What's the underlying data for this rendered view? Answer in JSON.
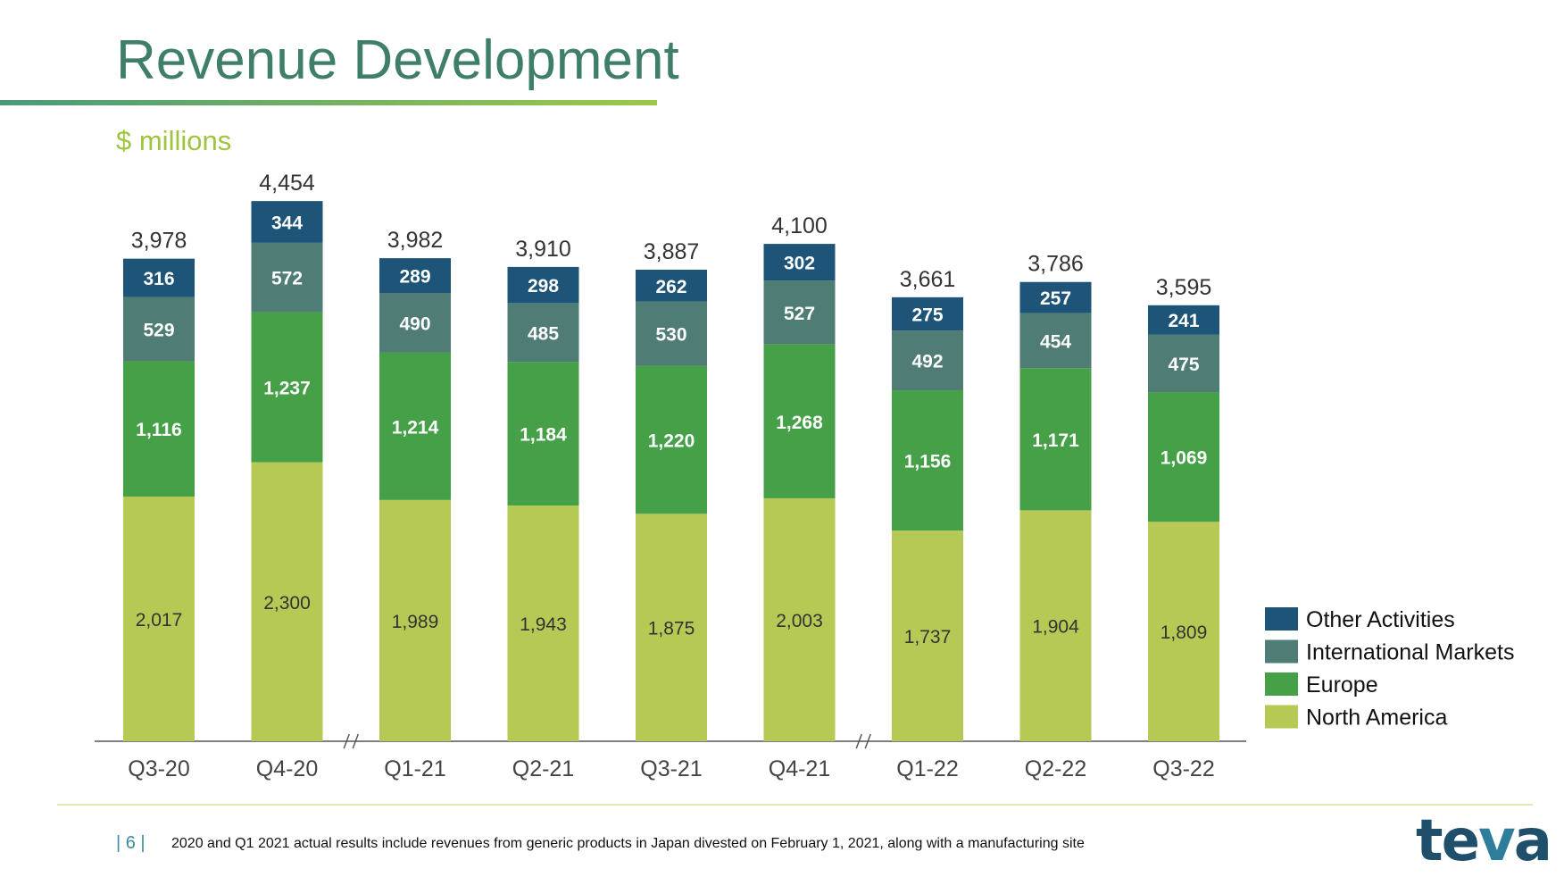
{
  "title": "Revenue Development",
  "subtitle": "$ millions",
  "footer": {
    "page_number": "| 6 |",
    "note": "2020 and Q1 2021 actual results include revenues from generic products in Japan divested on February 1, 2021, along with a manufacturing site"
  },
  "logo_text": "teva",
  "colors": {
    "other_activities": "#1d5478",
    "international_markets": "#4f7d76",
    "europe": "#45a047",
    "north_america": "#b6c955",
    "title": "#3f7f6a",
    "subtitle": "#9ec540"
  },
  "chart_data": {
    "type": "bar",
    "stacked": true,
    "categories": [
      "Q3-20",
      "Q4-20",
      "Q1-21",
      "Q2-21",
      "Q3-21",
      "Q4-21",
      "Q1-22",
      "Q2-22",
      "Q3-22"
    ],
    "series": [
      {
        "name": "North America",
        "values": [
          2017,
          2300,
          1989,
          1943,
          1875,
          2003,
          1737,
          1904,
          1809
        ]
      },
      {
        "name": "Europe",
        "values": [
          1116,
          1237,
          1214,
          1184,
          1220,
          1268,
          1156,
          1171,
          1069
        ]
      },
      {
        "name": "International Markets",
        "values": [
          529,
          572,
          490,
          485,
          530,
          527,
          492,
          454,
          475
        ]
      },
      {
        "name": "Other Activities",
        "values": [
          316,
          344,
          289,
          298,
          262,
          302,
          275,
          257,
          241
        ]
      }
    ],
    "totals": [
      "3,978",
      "4,454",
      "3,982",
      "3,910",
      "3,887",
      "4,100",
      "3,661",
      "3,786",
      "3,595"
    ],
    "axis_breaks_after": [
      "Q4-20",
      "Q4-21"
    ],
    "ylim": [
      0,
      4454
    ],
    "legend_position": "bottom-right",
    "legend_order": [
      "Other Activities",
      "International Markets",
      "Europe",
      "North America"
    ],
    "grid": false
  }
}
